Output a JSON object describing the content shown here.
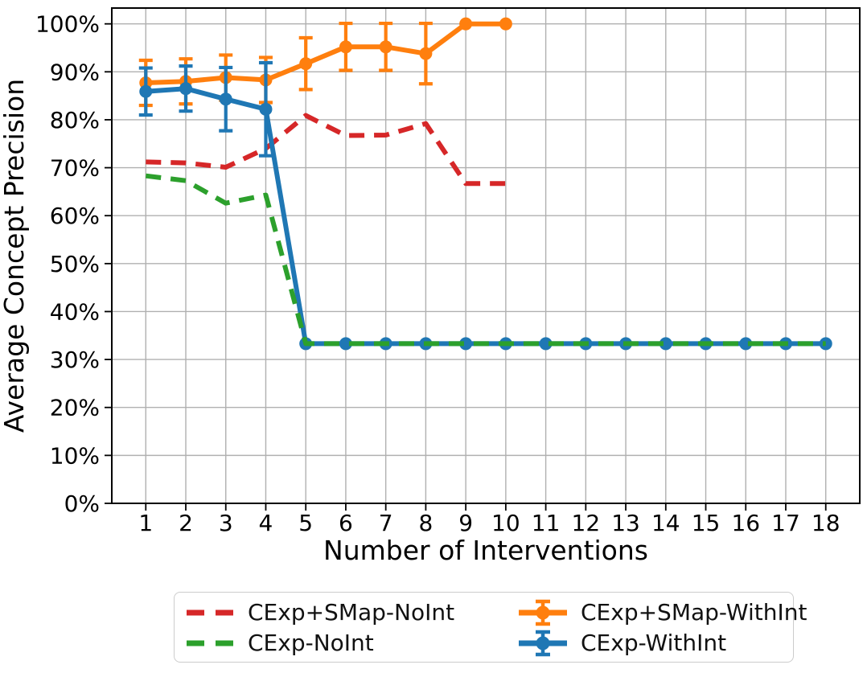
{
  "chart_data": {
    "type": "line",
    "title": "",
    "xlabel": "Number of Interventions",
    "ylabel": "Average Concept Precision",
    "x_tick_labels": [
      "1",
      "2",
      "3",
      "4",
      "5",
      "6",
      "7",
      "8",
      "9",
      "10",
      "11",
      "12",
      "13",
      "14",
      "15",
      "16",
      "17",
      "18"
    ],
    "y_tick_values": [
      0,
      10,
      20,
      30,
      40,
      50,
      60,
      70,
      80,
      90,
      100
    ],
    "y_tick_labels": [
      "0%",
      "10%",
      "20%",
      "30%",
      "40%",
      "50%",
      "60%",
      "70%",
      "80%",
      "90%",
      "100%"
    ],
    "xlim": [
      0.15,
      18.85
    ],
    "ylim": [
      0,
      103.3
    ],
    "grid": true,
    "grid_color": "#b0b0b0",
    "spine_color": "#000000",
    "background": "#ffffff",
    "legend": {
      "position": "below-center",
      "columns": 2,
      "fill": "column-major",
      "order": [
        "CExp+SMap-NoInt",
        "CExp-NoInt",
        "CExp+SMap-WithInt",
        "CExp-WithInt"
      ]
    },
    "series": [
      {
        "name": "CExp+SMap-NoInt",
        "color": "#d62728",
        "line_style": "dashed",
        "markers": false,
        "error_bars": false,
        "zorder": 1,
        "x": [
          1,
          2,
          3,
          4,
          5,
          6,
          7,
          8,
          9,
          10
        ],
        "values": [
          71.2,
          71.0,
          70.1,
          74.0,
          80.9,
          76.7,
          76.8,
          79.2,
          66.7,
          66.7
        ]
      },
      {
        "name": "CExp-NoInt",
        "color": "#2ca02c",
        "line_style": "dashed",
        "markers": false,
        "error_bars": false,
        "zorder": 4,
        "x": [
          1,
          2,
          3,
          4,
          5,
          6,
          7,
          8,
          9,
          10,
          11,
          12,
          13,
          14,
          15,
          16,
          17,
          18
        ],
        "values": [
          68.3,
          67.3,
          62.6,
          64.3,
          33.3,
          33.3,
          33.3,
          33.3,
          33.3,
          33.3,
          33.3,
          33.3,
          33.3,
          33.3,
          33.3,
          33.3,
          33.3,
          33.3
        ]
      },
      {
        "name": "CExp+SMap-WithInt",
        "color": "#ff7f0e",
        "line_style": "solid",
        "markers": true,
        "error_bars": true,
        "zorder": 2,
        "x": [
          1,
          2,
          3,
          4,
          5,
          6,
          7,
          8,
          9,
          10
        ],
        "values": [
          87.7,
          88.0,
          88.8,
          88.3,
          91.7,
          95.2,
          95.2,
          93.8,
          100.0,
          100.0
        ],
        "errors": [
          4.7,
          4.7,
          4.7,
          4.7,
          5.4,
          4.9,
          4.9,
          6.3,
          0,
          0
        ]
      },
      {
        "name": "CExp-WithInt",
        "color": "#1f77b4",
        "line_style": "solid",
        "markers": true,
        "error_bars": true,
        "zorder": 3,
        "x": [
          1,
          2,
          3,
          4,
          5,
          6,
          7,
          8,
          9,
          10,
          11,
          12,
          13,
          14,
          15,
          16,
          17,
          18
        ],
        "values": [
          85.9,
          86.5,
          84.3,
          82.2,
          33.3,
          33.3,
          33.3,
          33.3,
          33.3,
          33.3,
          33.3,
          33.3,
          33.3,
          33.3,
          33.3,
          33.3,
          33.3,
          33.3
        ],
        "errors": [
          4.9,
          4.7,
          6.6,
          9.7,
          0,
          0,
          0,
          0,
          0,
          0,
          0,
          0,
          0,
          0,
          0,
          0,
          0,
          0
        ]
      }
    ]
  }
}
